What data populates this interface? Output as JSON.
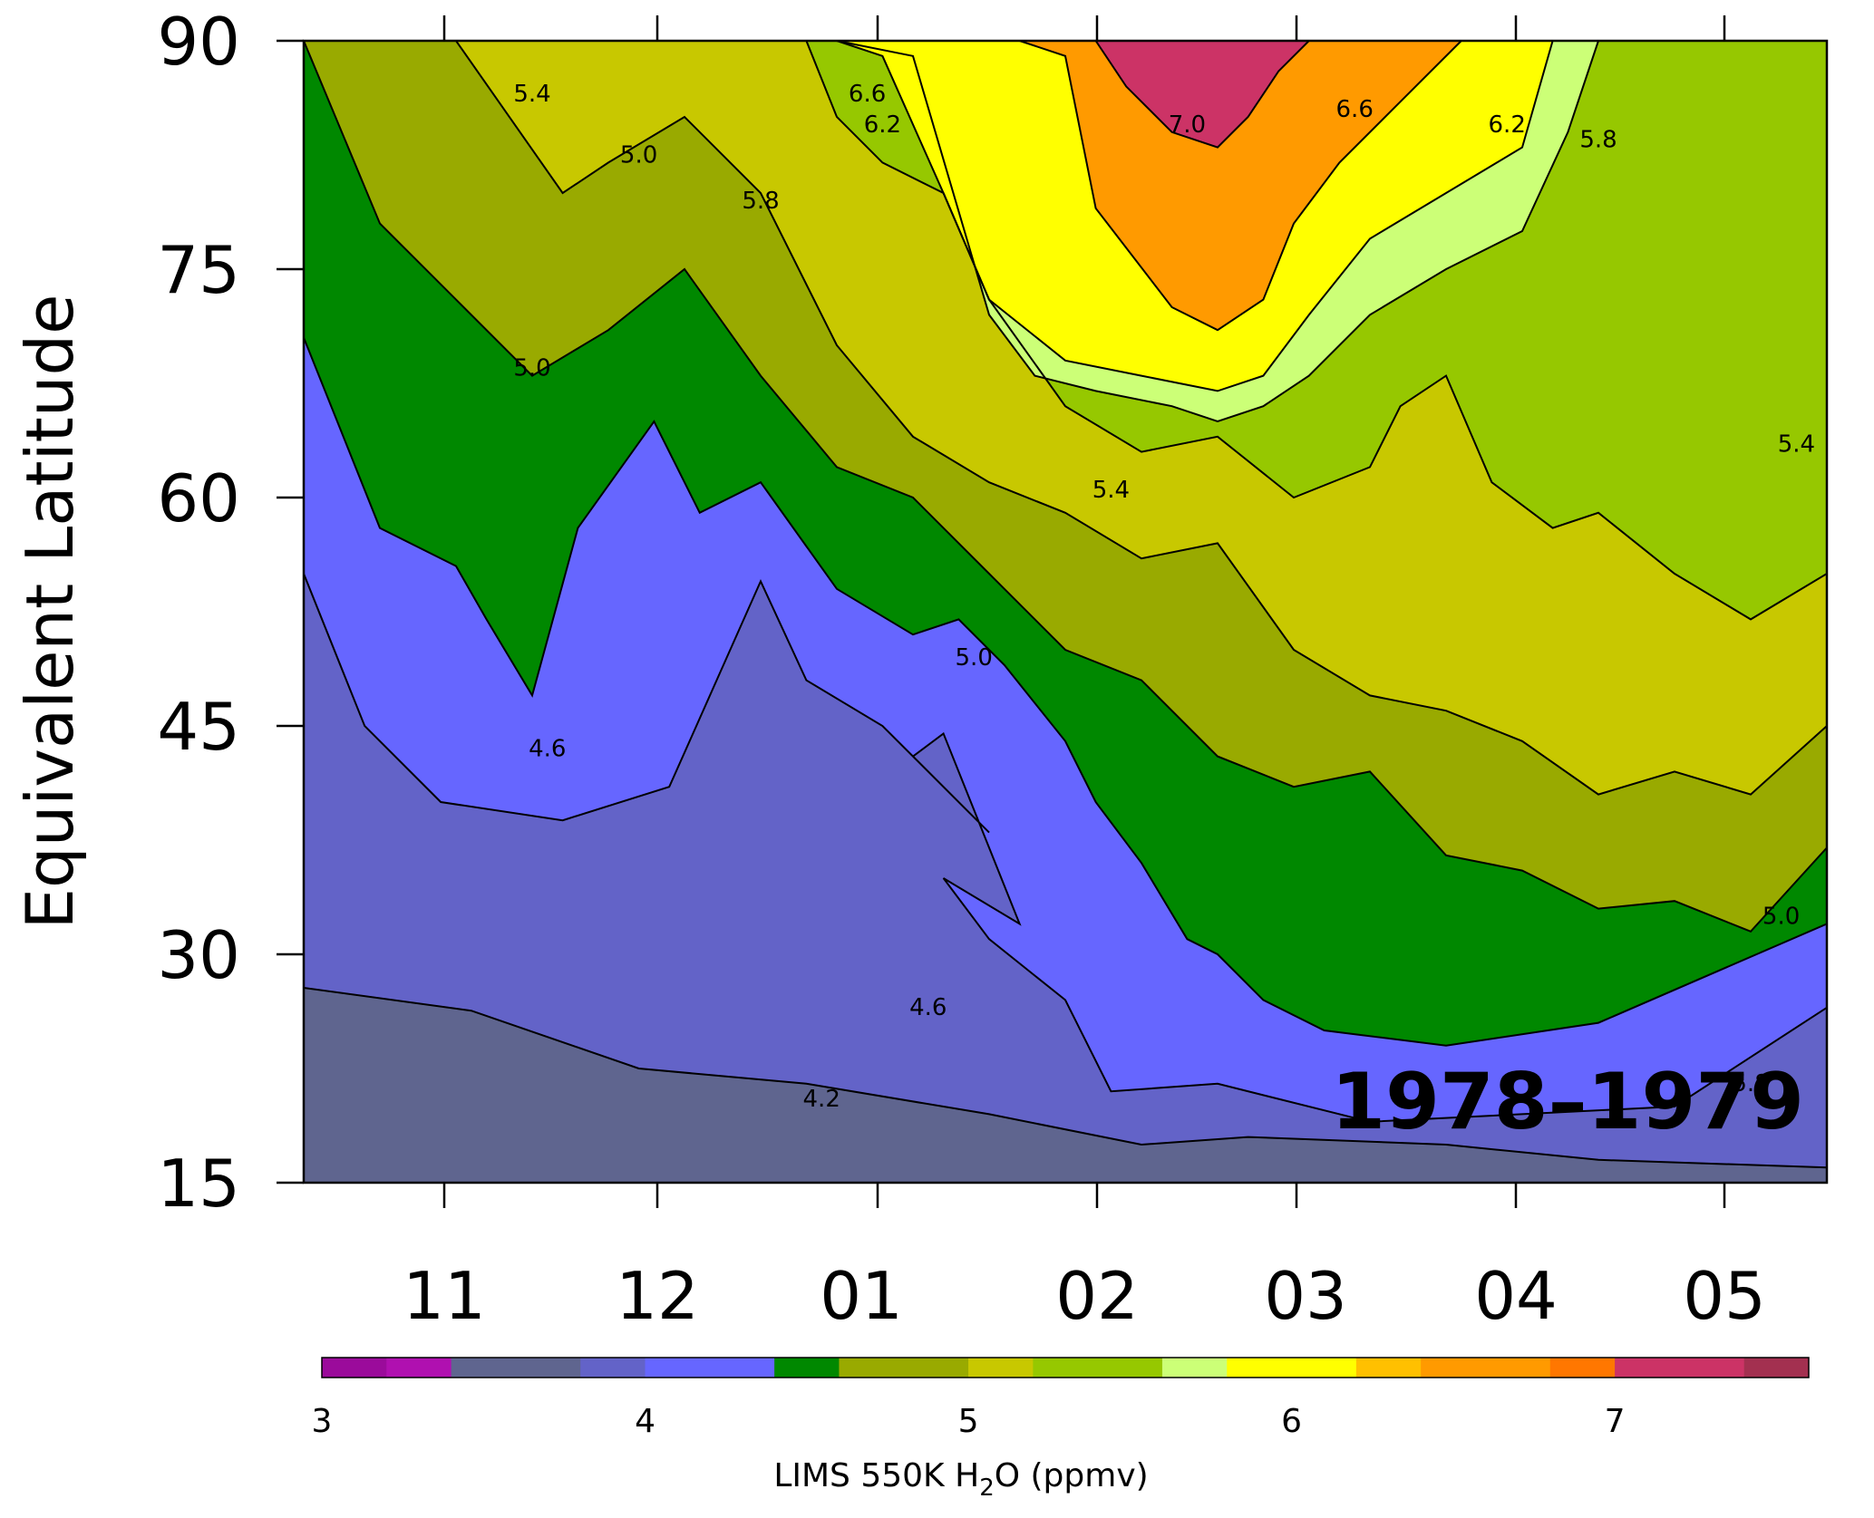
{
  "chart_data": {
    "type": "heatmap",
    "subtype": "filled-contour",
    "ylabel": "Equivalent Latitude",
    "y_ticks": [
      90,
      75,
      60,
      45,
      30,
      15
    ],
    "ylim": [
      15,
      90
    ],
    "x_month_labels": [
      "11",
      "12",
      "01",
      "02",
      "03",
      "04",
      "05"
    ],
    "annotation": "1978–1979",
    "colorbar": {
      "label_parts": [
        "LIMS 550K H",
        "2",
        "O (ppmv)"
      ],
      "ticks": [
        "3",
        "4",
        "5",
        "6",
        "7"
      ],
      "range": [
        3.0,
        7.6
      ],
      "levels": [
        {
          "from": 3.0,
          "to": 3.2,
          "color": "#9b0b9b"
        },
        {
          "from": 3.2,
          "to": 3.4,
          "color": "#b010b0"
        },
        {
          "from": 3.4,
          "to": 3.8,
          "color": "#5f658f"
        },
        {
          "from": 3.8,
          "to": 4.0,
          "color": "#6363c8"
        },
        {
          "from": 4.0,
          "to": 4.4,
          "color": "#6666ff"
        },
        {
          "from": 4.4,
          "to": 4.6,
          "color": "#008800"
        },
        {
          "from": 4.6,
          "to": 5.0,
          "color": "#99aa00"
        },
        {
          "from": 5.0,
          "to": 5.2,
          "color": "#c8c800"
        },
        {
          "from": 5.2,
          "to": 5.6,
          "color": "#96c800"
        },
        {
          "from": 5.6,
          "to": 5.8,
          "color": "#ccff77"
        },
        {
          "from": 5.8,
          "to": 6.2,
          "color": "#ffff00"
        },
        {
          "from": 6.2,
          "to": 6.4,
          "color": "#ffc000"
        },
        {
          "from": 6.4,
          "to": 6.8,
          "color": "#ff9a00"
        },
        {
          "from": 6.8,
          "to": 7.0,
          "color": "#ff7700"
        },
        {
          "from": 7.0,
          "to": 7.4,
          "color": "#cc3366"
        },
        {
          "from": 7.4,
          "to": 7.6,
          "color": "#a33050"
        }
      ]
    },
    "contour_labels": [
      "5.4",
      "5.0",
      "6.6",
      "6.2",
      "5.8",
      "7.0",
      "6.6",
      "6.2",
      "5.8",
      "5.0",
      "5.4",
      "5.0",
      "4.6",
      "5.4",
      "4.6",
      "5.0",
      "4.2",
      "5.8"
    ],
    "regions": [
      {
        "level": 4.2,
        "color": "#6363c8",
        "bounds": [
          [
            0.0,
            27.8
          ],
          [
            0.11,
            26.3
          ],
          [
            0.22,
            22.5
          ],
          [
            0.33,
            21.5
          ],
          [
            0.45,
            19.5
          ],
          [
            0.55,
            17.5
          ],
          [
            0.62,
            18.0
          ],
          [
            0.75,
            17.5
          ],
          [
            0.85,
            16.5
          ],
          [
            1.0,
            16.0
          ]
        ]
      },
      {
        "level": 4.4,
        "color": "#6666ff",
        "bounds": [
          [
            0.0,
            55.0
          ],
          [
            0.04,
            45.0
          ],
          [
            0.09,
            40.0
          ],
          [
            0.17,
            38.8
          ],
          [
            0.24,
            41.0
          ],
          [
            0.3,
            54.5
          ],
          [
            0.33,
            48.0
          ],
          [
            0.38,
            45.0
          ],
          [
            0.45,
            38.0
          ],
          [
            0.4,
            43.0
          ],
          [
            0.42,
            44.5
          ],
          [
            0.47,
            32.0
          ],
          [
            0.42,
            35.0
          ],
          [
            0.45,
            31.0
          ],
          [
            0.5,
            27.0
          ],
          [
            0.53,
            21.0
          ],
          [
            0.6,
            21.5
          ],
          [
            0.7,
            19.0
          ],
          [
            0.8,
            19.5
          ],
          [
            0.9,
            20.0
          ],
          [
            1.0,
            26.5
          ]
        ]
      },
      {
        "level": 4.6,
        "color": "#008800",
        "bounds": [
          [
            0.0,
            70.5
          ],
          [
            0.05,
            58.0
          ],
          [
            0.1,
            55.5
          ],
          [
            0.12,
            52.0
          ],
          [
            0.15,
            47.0
          ],
          [
            0.18,
            58.0
          ],
          [
            0.23,
            65.0
          ],
          [
            0.26,
            59.0
          ],
          [
            0.3,
            61.0
          ],
          [
            0.35,
            54.0
          ],
          [
            0.4,
            51.0
          ],
          [
            0.43,
            52.0
          ],
          [
            0.46,
            49.0
          ],
          [
            0.5,
            44.0
          ],
          [
            0.52,
            40.0
          ],
          [
            0.55,
            36.0
          ],
          [
            0.58,
            31.0
          ],
          [
            0.6,
            30.0
          ],
          [
            0.63,
            27.0
          ],
          [
            0.67,
            25.0
          ],
          [
            0.75,
            24.0
          ],
          [
            0.85,
            25.5
          ],
          [
            1.0,
            32.0
          ]
        ]
      },
      {
        "level": 5.0,
        "color": "#99aa00",
        "bounds": [
          [
            0.0,
            90.0
          ],
          [
            0.05,
            78.0
          ],
          [
            0.1,
            73.0
          ],
          [
            0.15,
            68.0
          ],
          [
            0.2,
            71.0
          ],
          [
            0.25,
            75.0
          ],
          [
            0.3,
            68.0
          ],
          [
            0.35,
            62.0
          ],
          [
            0.4,
            60.0
          ],
          [
            0.45,
            55.0
          ],
          [
            0.5,
            50.0
          ],
          [
            0.55,
            48.0
          ],
          [
            0.6,
            43.0
          ],
          [
            0.65,
            41.0
          ],
          [
            0.7,
            42.0
          ],
          [
            0.75,
            36.5
          ],
          [
            0.8,
            35.5
          ],
          [
            0.85,
            33.0
          ],
          [
            0.9,
            33.5
          ],
          [
            0.95,
            31.5
          ],
          [
            1.0,
            37.0
          ]
        ]
      },
      {
        "level": 5.2,
        "color": "#c8c800",
        "bounds": [
          [
            0.0,
            90.0
          ],
          [
            0.1,
            90.0
          ],
          [
            0.17,
            80.0
          ],
          [
            0.2,
            82.0
          ],
          [
            0.25,
            85.0
          ],
          [
            0.3,
            80.0
          ],
          [
            0.35,
            70.0
          ],
          [
            0.4,
            64.0
          ],
          [
            0.45,
            61.0
          ],
          [
            0.5,
            59.0
          ],
          [
            0.55,
            56.0
          ],
          [
            0.6,
            57.0
          ],
          [
            0.65,
            50.0
          ],
          [
            0.7,
            47.0
          ],
          [
            0.75,
            46.0
          ],
          [
            0.8,
            44.0
          ],
          [
            0.85,
            40.5
          ],
          [
            0.9,
            42.0
          ],
          [
            0.95,
            40.5
          ],
          [
            1.0,
            45.0
          ]
        ]
      },
      {
        "level": 5.4,
        "color": "#96c800",
        "bounds": [
          [
            0.0,
            90.0
          ],
          [
            0.33,
            90.0
          ],
          [
            0.35,
            85.0
          ],
          [
            0.38,
            82.0
          ],
          [
            0.42,
            80.0
          ],
          [
            0.45,
            73.0
          ],
          [
            0.5,
            66.0
          ],
          [
            0.55,
            63.0
          ],
          [
            0.6,
            64.0
          ],
          [
            0.65,
            60.0
          ],
          [
            0.7,
            62.0
          ],
          [
            0.72,
            66.0
          ],
          [
            0.75,
            68.0
          ],
          [
            0.78,
            61.0
          ],
          [
            0.82,
            58.0
          ],
          [
            0.85,
            59.0
          ],
          [
            0.9,
            55.0
          ],
          [
            0.95,
            52.0
          ],
          [
            1.0,
            55.0
          ]
        ]
      },
      {
        "level": 5.8,
        "color": "#ccff77",
        "bounds": [
          [
            0.3,
            90.0
          ],
          [
            0.35,
            90.0
          ],
          [
            0.4,
            89.0
          ],
          [
            0.45,
            72.0
          ],
          [
            0.48,
            68.0
          ],
          [
            0.52,
            67.0
          ],
          [
            0.57,
            66.0
          ],
          [
            0.6,
            65.0
          ],
          [
            0.63,
            66.0
          ],
          [
            0.66,
            68.0
          ],
          [
            0.7,
            72.0
          ],
          [
            0.75,
            75.0
          ],
          [
            0.8,
            77.5
          ],
          [
            0.83,
            84.0
          ],
          [
            0.85,
            90.0
          ]
        ]
      },
      {
        "level": 6.0,
        "color": "#ffff00",
        "bounds": [
          [
            0.3,
            90.0
          ],
          [
            0.35,
            90.0
          ],
          [
            0.38,
            89.0
          ],
          [
            0.42,
            80.0
          ],
          [
            0.45,
            73.0
          ],
          [
            0.5,
            69.0
          ],
          [
            0.55,
            68.0
          ],
          [
            0.6,
            67.0
          ],
          [
            0.63,
            68.0
          ],
          [
            0.66,
            72.0
          ],
          [
            0.7,
            77.0
          ],
          [
            0.75,
            80.0
          ],
          [
            0.8,
            83.0
          ],
          [
            0.82,
            90.0
          ]
        ]
      },
      {
        "level": 6.4,
        "color": "#ff9a00",
        "bounds": [
          [
            0.47,
            90.0
          ],
          [
            0.5,
            89.0
          ],
          [
            0.52,
            79.0
          ],
          [
            0.57,
            72.5
          ],
          [
            0.6,
            71.0
          ],
          [
            0.63,
            73.0
          ],
          [
            0.65,
            78.0
          ],
          [
            0.68,
            82.0
          ],
          [
            0.72,
            86.0
          ],
          [
            0.76,
            90.0
          ]
        ]
      },
      {
        "level": 7.0,
        "color": "#cc3366",
        "bounds": [
          [
            0.52,
            90.0
          ],
          [
            0.54,
            87.0
          ],
          [
            0.57,
            84.0
          ],
          [
            0.6,
            83.0
          ],
          [
            0.62,
            85.0
          ],
          [
            0.64,
            88.0
          ],
          [
            0.66,
            90.0
          ]
        ]
      }
    ]
  }
}
